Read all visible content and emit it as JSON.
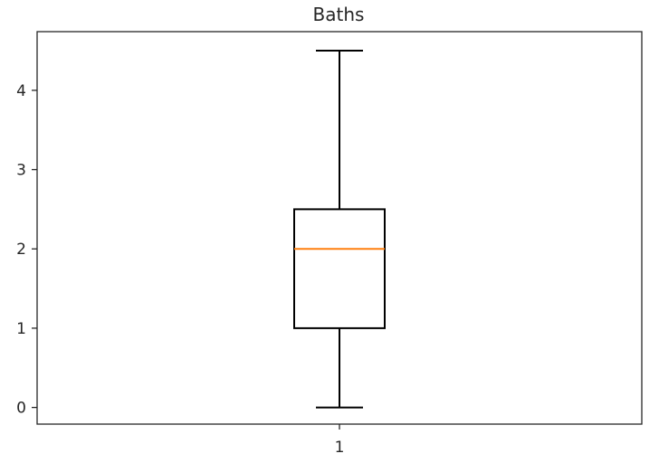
{
  "chart_data": {
    "type": "box",
    "title": "Baths",
    "xlabel": "",
    "ylabel": "",
    "categories": [
      "1"
    ],
    "ylim": [
      -0.21,
      4.74
    ],
    "yticks": [
      0,
      1,
      2,
      3,
      4
    ],
    "grid": false,
    "boxes": [
      {
        "label": "1",
        "whisker_low": 0,
        "q1": 1,
        "median": 2,
        "q3": 2.5,
        "whisker_high": 4.5
      }
    ],
    "colors": {
      "box": "#000000",
      "median": "#ff7f0e",
      "axes": "#262626"
    }
  }
}
